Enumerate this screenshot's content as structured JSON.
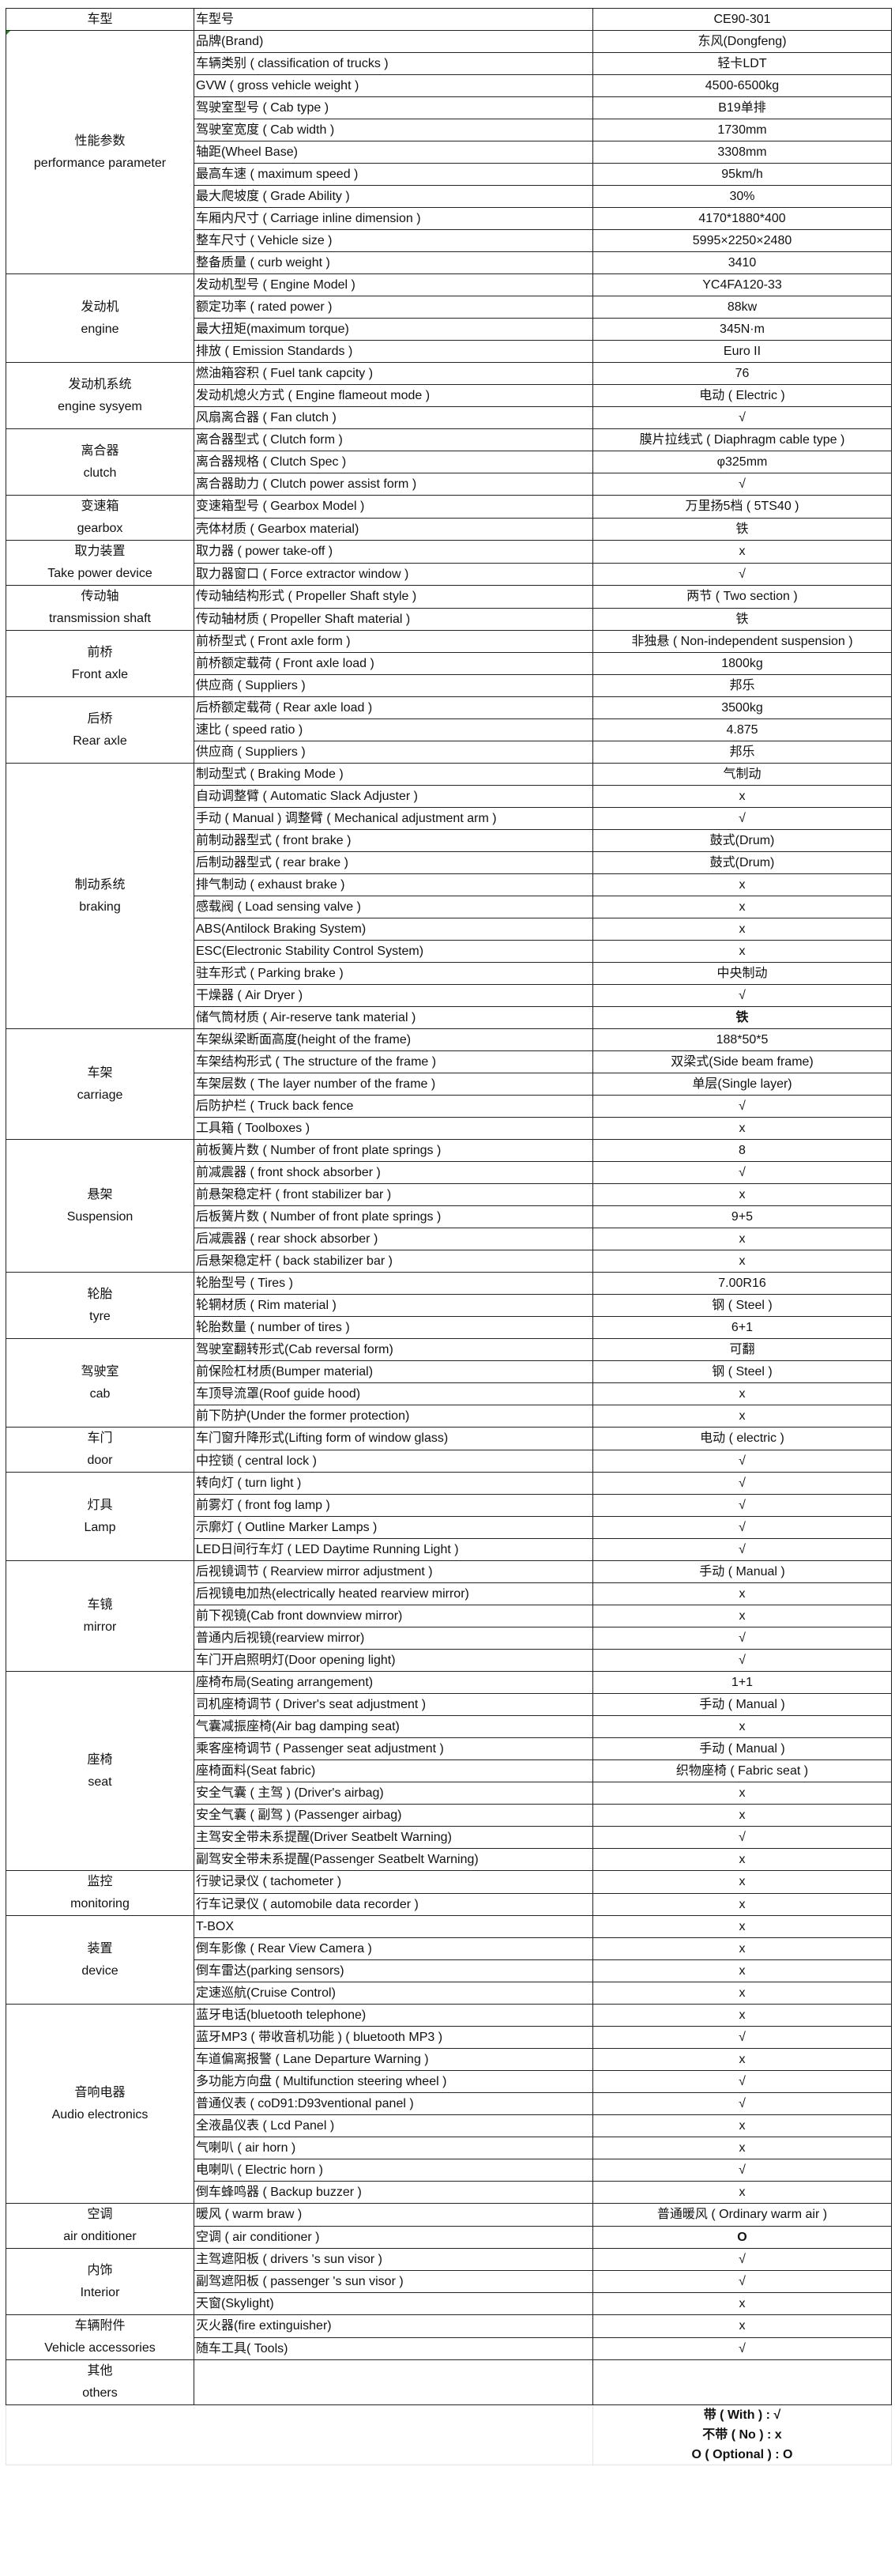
{
  "header": {
    "col1": "车型",
    "col2": "车型号",
    "col3": "CE90-301"
  },
  "groups": [
    {
      "cn": "性能参数",
      "en": "performance parameter",
      "rows": [
        {
          "label": "品牌(Brand)",
          "value": "东风(Dongfeng)"
        },
        {
          "label": "车辆类别 ( classification of trucks )",
          "value": "轻卡LDT"
        },
        {
          "label": "GVW ( gross vehicle weight )",
          "value": "4500-6500kg"
        },
        {
          "label": "驾驶室型号 ( Cab type )",
          "value": "B19单排"
        },
        {
          "label": "驾驶室宽度 ( Cab width )",
          "value": "1730mm"
        },
        {
          "label": "轴距(Wheel Base)",
          "value": "3308mm"
        },
        {
          "label": "最高车速 ( maximum speed )",
          "value": "95km/h"
        },
        {
          "label": "最大爬坡度 ( Grade Ability )",
          "value": "30%"
        },
        {
          "label": "车厢内尺寸 ( Carriage inline dimension )",
          "value": "4170*1880*400"
        },
        {
          "label": "整车尺寸 ( Vehicle size )",
          "value": "5995×2250×2480"
        },
        {
          "label": "整备质量 ( curb weight )",
          "value": "3410"
        }
      ]
    },
    {
      "cn": "发动机",
      "en": "engine",
      "rows": [
        {
          "label": "发动机型号 ( Engine Model )",
          "value": "YC4FA120-33"
        },
        {
          "label": "额定功率 ( rated power )",
          "value": "88kw"
        },
        {
          "label": "最大扭矩(maximum torque)",
          "value": "345N·m"
        },
        {
          "label": "排放 ( Emission Standards )",
          "value": "Euro II"
        }
      ]
    },
    {
      "cn": "发动机系统",
      "en": "engine sysyem",
      "rows": [
        {
          "label": "燃油箱容积 ( Fuel tank capcity )",
          "value": "76"
        },
        {
          "label": "发动机熄火方式 ( Engine flameout mode )",
          "value": "电动 ( Electric )"
        },
        {
          "label": "风扇离合器 ( Fan clutch )",
          "value": "√"
        }
      ]
    },
    {
      "cn": "离合器",
      "en": "clutch",
      "rows": [
        {
          "label": "离合器型式 ( Clutch form )",
          "value": "膜片拉线式 ( Diaphragm cable type )"
        },
        {
          "label": "离合器规格 ( Clutch Spec )",
          "value": "φ325mm"
        },
        {
          "label": "离合器助力 ( Clutch power assist form )",
          "value": "√"
        }
      ]
    },
    {
      "cn": "变速箱",
      "en": "gearbox",
      "rows": [
        {
          "label": "变速箱型号 ( Gearbox Model )",
          "value": "万里扬5档 ( 5TS40 )"
        },
        {
          "label": "壳体材质 ( Gearbox material)",
          "value": "铁"
        }
      ]
    },
    {
      "cn": "取力装置",
      "en": "Take power device",
      "rows": [
        {
          "label": "取力器 (  power take-off )",
          "value": "x"
        },
        {
          "label": "取力器窗口 ( Force extractor window )",
          "value": "√"
        }
      ]
    },
    {
      "cn": "传动轴",
      "en": "transmission shaft",
      "rows": [
        {
          "label": "传动轴结构形式 ( Propeller Shaft style )",
          "value": "两节 ( Two section )"
        },
        {
          "label": "传动轴材质 ( Propeller Shaft material )",
          "value": "铁"
        }
      ]
    },
    {
      "cn": "前桥",
      "en": "Front axle",
      "rows": [
        {
          "label": "前桥型式 ( Front axle form )",
          "value": "非独悬 ( Non-independent suspension )"
        },
        {
          "label": "前桥额定载荷 ( Front axle load )",
          "value": "1800kg"
        },
        {
          "label": "供应商 ( Suppliers )",
          "value": "邦乐"
        }
      ]
    },
    {
      "cn": "后桥",
      "en": "Rear axle",
      "rows": [
        {
          "label": "后桥额定载荷 ( Rear axle load )",
          "value": "3500kg"
        },
        {
          "label": "速比 ( speed ratio )",
          "value": "4.875"
        },
        {
          "label": "供应商 ( Suppliers )",
          "value": "邦乐"
        }
      ]
    },
    {
      "cn": "制动系统",
      "en": "braking",
      "rows": [
        {
          "label": "制动型式 ( Braking Mode )",
          "value": "气制动"
        },
        {
          "label": "自动调整臂 ( Automatic Slack Adjuster )",
          "value": "x"
        },
        {
          "label": "手动 ( Manual ) 调整臂 ( Mechanical adjustment arm )",
          "value": "√"
        },
        {
          "label": "前制动器型式 ( front brake )",
          "value": "鼓式(Drum)"
        },
        {
          "label": "后制动器型式 ( rear brake )",
          "value": "鼓式(Drum)"
        },
        {
          "label": "排气制动  ( exhaust brake )",
          "value": "x"
        },
        {
          "label": "感载阀 ( Load sensing valve )",
          "value": "x"
        },
        {
          "label": "ABS(Antilock Braking System)",
          "value": "x"
        },
        {
          "label": "ESC(Electronic Stability Control System)",
          "value": "x"
        },
        {
          "label": "驻车形式  ( Parking brake )",
          "value": "中央制动"
        },
        {
          "label": "干燥器 ( Air Dryer )",
          "value": "√"
        },
        {
          "label": "储气筒材质 ( Air-reserve tank material )",
          "value": "铁",
          "bold": true
        }
      ]
    },
    {
      "cn": "车架",
      "en": "carriage",
      "rows": [
        {
          "label": "车架纵梁断面高度(height of the frame)",
          "value": "188*50*5"
        },
        {
          "label": "车架结构形式 ( The structure of the frame )",
          "value": "双梁式(Side beam frame)"
        },
        {
          "label": "车架层数 ( The layer number of the frame )",
          "value": "单层(Single layer)"
        },
        {
          "label": "后防护栏 ( Truck back fence",
          "value": "√"
        },
        {
          "label": "工具箱  ( Toolboxes )",
          "value": "x"
        }
      ]
    },
    {
      "cn": "悬架",
      "en": "Suspension",
      "rows": [
        {
          "label": "前板簧片数 ( Number of front plate springs )",
          "value": "8"
        },
        {
          "label": "前减震器 ( front shock absorber )",
          "value": "√"
        },
        {
          "label": "前悬架稳定杆 ( front stabilizer bar )",
          "value": "x"
        },
        {
          "label": "后板簧片数 ( Number of front plate springs )",
          "value": "9+5"
        },
        {
          "label": "后减震器 ( rear shock absorber )",
          "value": "x"
        },
        {
          "label": "后悬架稳定杆 ( back stabilizer bar )",
          "value": "x"
        }
      ]
    },
    {
      "cn": "轮胎",
      "en": "tyre",
      "rows": [
        {
          "label": "轮胎型号 ( Tires )",
          "value": "7.00R16"
        },
        {
          "label": "轮辋材质 ( Rim material )",
          "value": "钢 ( Steel )"
        },
        {
          "label": "轮胎数量 ( number of tires )",
          "value": "6+1"
        }
      ]
    },
    {
      "cn": "驾驶室",
      "en": "cab",
      "rows": [
        {
          "label": "驾驶室翻转形式(Cab reversal form)",
          "value": "可翻"
        },
        {
          "label": "前保险杠材质(Bumper material)",
          "value": "钢 ( Steel )"
        },
        {
          "label": "车顶导流罩(Roof guide hood)",
          "value": "x"
        },
        {
          "label": "前下防护(Under the former protection)",
          "value": "x"
        }
      ]
    },
    {
      "cn": "车门",
      "en": "door",
      "rows": [
        {
          "label": "车门窗升降形式(Lifting form of window glass)",
          "value": "电动 ( electric )"
        },
        {
          "label": "中控锁 ( central lock )",
          "value": "√"
        }
      ]
    },
    {
      "cn": "灯具",
      "en": "Lamp",
      "rows": [
        {
          "label": "转向灯 (  turn light )",
          "value": "√"
        },
        {
          "label": "前雾灯    ( front fog lamp )",
          "value": "√"
        },
        {
          "label": "示廓灯 ( Outline Marker Lamps )",
          "value": "√"
        },
        {
          "label": "LED日间行车灯 ( LED Daytime Running Light )",
          "value": "√"
        }
      ]
    },
    {
      "cn": "车镜",
      "en": "mirror",
      "rows": [
        {
          "label": "后视镜调节 ( Rearview mirror adjustment )",
          "value": "手动 ( Manual )"
        },
        {
          "label": "后视镜电加热(electrically heated rearview mirror)",
          "value": "x"
        },
        {
          "label": "前下视镜(Cab front downview mirror)",
          "value": "x"
        },
        {
          "label": "普通内后视镜(rearview mirror)",
          "value": "√"
        },
        {
          "label": "车门开启照明灯(Door opening light)",
          "value": "√"
        }
      ]
    },
    {
      "cn": "座椅",
      "en": "seat",
      "rows": [
        {
          "label": "座椅布局(Seating arrangement)",
          "value": "1+1"
        },
        {
          "label": "司机座椅调节 ( Driver's seat adjustment )",
          "value": "手动 ( Manual )"
        },
        {
          "label": "气囊减振座椅(Air bag damping seat)",
          "value": "x"
        },
        {
          "label": "乘客座椅调节 ( Passenger seat adjustment )",
          "value": "手动 ( Manual )"
        },
        {
          "label": "座椅面料(Seat fabric)",
          "value": "织物座椅 ( Fabric seat )"
        },
        {
          "label": "安全气囊 ( 主驾 ) (Driver's airbag)",
          "value": "x"
        },
        {
          "label": "安全气囊 ( 副驾 ) (Passenger airbag)",
          "value": "x"
        },
        {
          "label": "主驾安全带未系提醒(Driver Seatbelt Warning)",
          "value": "√"
        },
        {
          "label": "副驾安全带未系提醒(Passenger Seatbelt Warning)",
          "value": "x"
        }
      ]
    },
    {
      "cn": "监控",
      "en": "monitoring",
      "rows": [
        {
          "label": "行驶记录仪 (  tachometer )",
          "value": "x"
        },
        {
          "label": "行车记录仪 ( automobile data recorder )",
          "value": "x"
        }
      ]
    },
    {
      "cn": "装置",
      "en": "device",
      "rows": [
        {
          "label": "T-BOX",
          "value": "x"
        },
        {
          "label": "倒车影像 ( Rear View Camera )",
          "value": "x"
        },
        {
          "label": "倒车雷达(parking sensors)",
          "value": "x"
        },
        {
          "label": "定速巡航(Cruise Control)",
          "value": "x"
        }
      ]
    },
    {
      "cn": "音响电器",
      "en": "Audio electronics",
      "rows": [
        {
          "label": "蓝牙电话(bluetooth telephone)",
          "value": "x"
        },
        {
          "label": "蓝牙MP3 ( 带收音机功能 ) ( bluetooth MP3 )",
          "value": "√"
        },
        {
          "label": "车道偏离报警 ( Lane Departure Warning )",
          "value": "x"
        },
        {
          "label": "多功能方向盘 ( Multifunction steering wheel )",
          "value": "√"
        },
        {
          "label": "普通仪表 ( coD91:D93ventional panel )",
          "value": "√"
        },
        {
          "label": "全液晶仪表 ( Lcd Panel )",
          "value": "x"
        },
        {
          "label": "气喇叭 ( air horn )",
          "value": "x"
        },
        {
          "label": "电喇叭 ( Electric horn )",
          "value": "√"
        },
        {
          "label": "倒车蜂鸣器 ( Backup buzzer )",
          "value": "x"
        }
      ]
    },
    {
      "cn": "空调",
      "en": "air onditioner",
      "rows": [
        {
          "label": "暖风 ( warm braw )",
          "value": "普通暖风 ( Ordinary warm air )"
        },
        {
          "label": "空调 ( air conditioner )",
          "value": "O",
          "bold": true
        }
      ]
    },
    {
      "cn": "内饰",
      "en": "Interior",
      "rows": [
        {
          "label": "主驾遮阳板 ( drivers  's sun visor )",
          "value": "√"
        },
        {
          "label": "副驾遮阳板 ( passenger  's sun visor )",
          "value": "√"
        },
        {
          "label": "天窗(Skylight)",
          "value": "x"
        }
      ]
    },
    {
      "cn": "车辆附件",
      "en": "Vehicle accessories",
      "rows": [
        {
          "label": "灭火器(fire extinguisher)",
          "value": "x"
        },
        {
          "label": "随车工具( Tools)",
          "value": "√"
        }
      ]
    }
  ],
  "others": {
    "cn": "其他",
    "en": "others"
  },
  "legend": {
    "with": "带 ( With ) : √",
    "no": "不带 ( No ) : x",
    "optional": "O ( Optional ) : O"
  }
}
